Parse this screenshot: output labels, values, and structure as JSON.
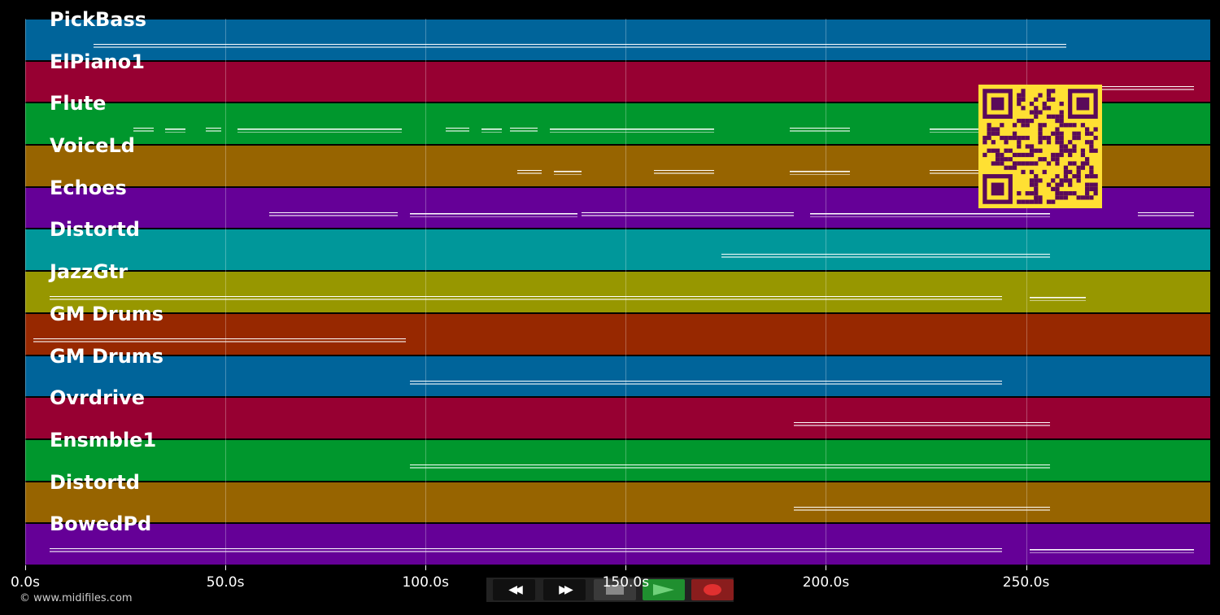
{
  "tracks": [
    {
      "name": "PickBass",
      "color": "#00649a"
    },
    {
      "name": "ElPiano1",
      "color": "#970032"
    },
    {
      "name": "Flute",
      "color": "#00972d"
    },
    {
      "name": "VoiceLd",
      "color": "#976400"
    },
    {
      "name": "Echoes",
      "color": "#650097"
    },
    {
      "name": "Distortd",
      "color": "#00979a"
    },
    {
      "name": "JazzGtr",
      "color": "#979700"
    },
    {
      "name": "GM Drums",
      "color": "#972800"
    },
    {
      "name": "GM Drums",
      "color": "#00649a"
    },
    {
      "name": "Ovrdrive",
      "color": "#970032"
    },
    {
      "name": "Ensmble1",
      "color": "#00972d"
    },
    {
      "name": "Distortd",
      "color": "#976400"
    },
    {
      "name": "BowedPd",
      "color": "#650097"
    }
  ],
  "timeline": {
    "max_seconds": 296,
    "ticks": [
      "0.0s",
      "50.0s",
      "100.0s",
      "150.0s",
      "200.0s",
      "250.0s"
    ],
    "tick_values": [
      0,
      50,
      100,
      150,
      200,
      250
    ]
  },
  "note_segments": [
    [
      [
        17,
        260
      ]
    ],
    [
      [
        265,
        292
      ]
    ],
    [
      [
        27,
        32
      ],
      [
        35,
        40
      ],
      [
        45,
        49
      ],
      [
        53,
        94
      ],
      [
        105,
        111
      ],
      [
        114,
        119
      ],
      [
        121,
        128
      ],
      [
        131,
        172
      ],
      [
        191,
        206
      ],
      [
        226,
        239
      ]
    ],
    [
      [
        123,
        129
      ],
      [
        132,
        139
      ],
      [
        157,
        172
      ],
      [
        191,
        206
      ],
      [
        226,
        239
      ]
    ],
    [
      [
        61,
        93
      ],
      [
        96,
        138
      ],
      [
        139,
        192
      ],
      [
        196,
        256
      ],
      [
        278,
        292
      ]
    ],
    [
      [
        174,
        256
      ]
    ],
    [
      [
        6,
        244
      ],
      [
        251,
        265
      ]
    ],
    [
      [
        2,
        95
      ]
    ],
    [
      [
        96,
        244
      ]
    ],
    [
      [
        192,
        256
      ]
    ],
    [
      [
        96,
        256
      ]
    ],
    [
      [
        192,
        256
      ]
    ],
    [
      [
        6,
        244
      ],
      [
        251,
        292
      ]
    ]
  ],
  "copyright": "© www.midifiles.com",
  "transport": [
    {
      "name": "rewind-icon",
      "glyph": "◀◀"
    },
    {
      "name": "fast-forward-icon",
      "glyph": "▶▶"
    },
    {
      "name": "stop-icon",
      "glyph": ""
    },
    {
      "name": "play-icon",
      "glyph": ""
    },
    {
      "name": "record-icon",
      "glyph": ""
    }
  ],
  "colors": {
    "qr_background": "#ffe033",
    "qr_module": "#5a0a5a",
    "play_button": "#1f8f2f",
    "record_button": "#8a1d1d"
  }
}
